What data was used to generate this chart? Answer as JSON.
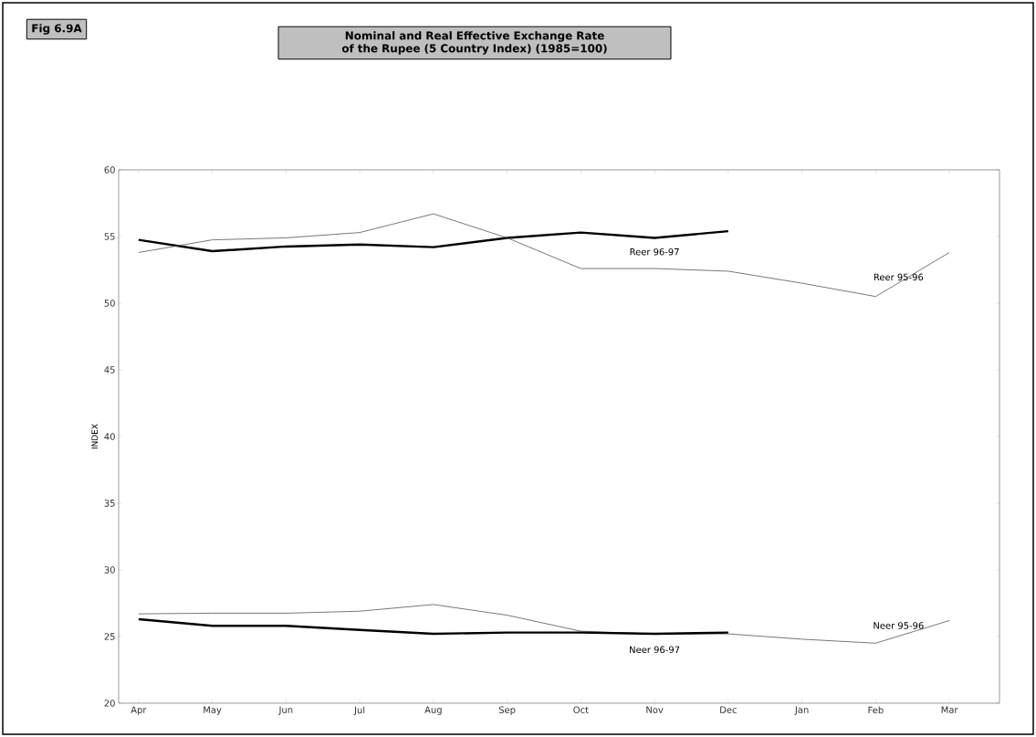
{
  "chart_data": {
    "type": "line",
    "title": "Nominal and Real Effective Exchange Rate of the Rupee (5 Country Index) (1985=100)",
    "subtitle": "Fig 6.9A",
    "ylabel": "INDEX",
    "categories": [
      "Apr",
      "May",
      "Jun",
      "Jul",
      "Aug",
      "Sep",
      "Oct",
      "Nov",
      "Dec",
      "Jan",
      "Feb",
      "Mar"
    ],
    "series": [
      {
        "name": "Reer 96-97",
        "color": "#000000",
        "values": [
          54.75,
          53.9,
          54.25,
          54.4,
          54.2,
          54.9,
          55.3,
          54.9,
          55.4,
          null,
          null,
          null
        ]
      },
      {
        "name": "Reer 95-96",
        "color": "#555555",
        "values": [
          53.8,
          54.75,
          54.9,
          55.3,
          56.7,
          54.9,
          52.6,
          52.6,
          52.4,
          51.5,
          50.5,
          53.8
        ]
      },
      {
        "name": "Neer 95-96",
        "color": "#555555",
        "values": [
          26.7,
          26.75,
          26.75,
          26.9,
          27.4,
          26.6,
          25.4,
          25.2,
          25.2,
          24.8,
          24.5,
          26.2
        ]
      },
      {
        "name": "Neer 96-97",
        "color": "#000000",
        "values": [
          26.3,
          25.8,
          25.8,
          25.5,
          25.2,
          25.3,
          25.3,
          25.2,
          25.3,
          null,
          null,
          null
        ]
      }
    ],
    "ylim": [
      20,
      60
    ],
    "yticks": [
      20,
      25,
      30,
      35,
      40,
      45,
      50,
      55,
      60
    ],
    "grid": false,
    "marker": "none",
    "line_style": "solid"
  }
}
